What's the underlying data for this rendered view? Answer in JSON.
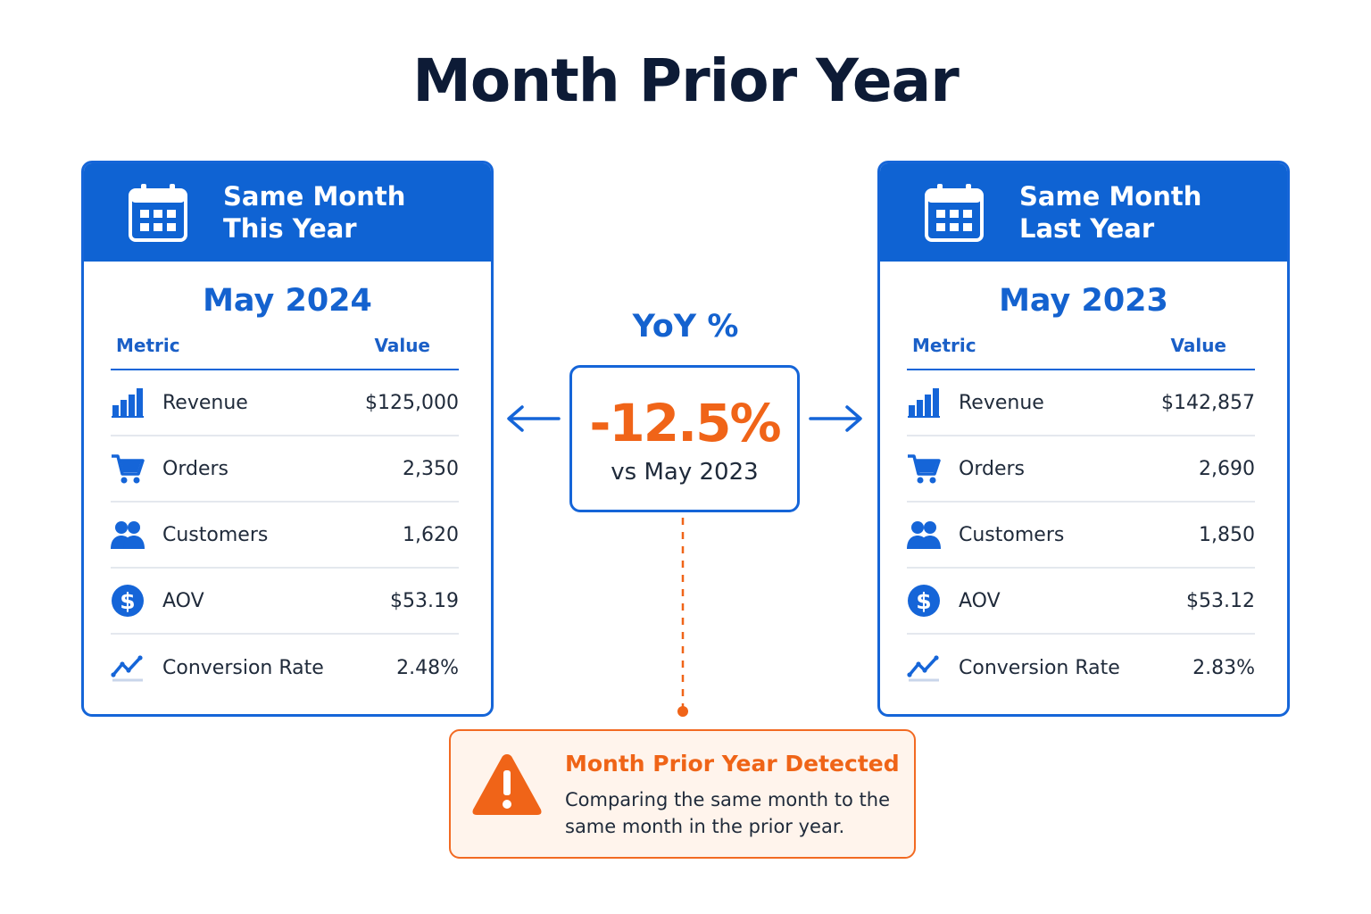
{
  "title": "Month Prior Year",
  "colors": {
    "primary_blue": "#0f63d3",
    "accent_orange": "#f06418",
    "alert_background": "#fff4ec"
  },
  "cards": [
    {
      "header_line1": "Same Month",
      "header_line2": "This Year",
      "header_icon": "calendar-icon",
      "month": "May 2024",
      "col_metric": "Metric",
      "col_value": "Value",
      "rows": [
        {
          "icon": "bar-chart-icon",
          "label": "Revenue",
          "value": "$125,000"
        },
        {
          "icon": "shopping-cart-icon",
          "label": "Orders",
          "value": "2,350"
        },
        {
          "icon": "users-icon",
          "label": "Customers",
          "value": "1,620"
        },
        {
          "icon": "dollar-icon",
          "label": "AOV",
          "value": "$53.19"
        },
        {
          "icon": "trend-line-icon",
          "label": "Conversion Rate",
          "value": "2.48%"
        }
      ]
    },
    {
      "header_line1": "Same Month",
      "header_line2": "Last Year",
      "header_icon": "calendar-icon",
      "month": "May 2023",
      "col_metric": "Metric",
      "col_value": "Value",
      "rows": [
        {
          "icon": "bar-chart-icon",
          "label": "Revenue",
          "value": "$142,857"
        },
        {
          "icon": "shopping-cart-icon",
          "label": "Orders",
          "value": "2,690"
        },
        {
          "icon": "users-icon",
          "label": "Customers",
          "value": "1,850"
        },
        {
          "icon": "dollar-icon",
          "label": "AOV",
          "value": "$53.12"
        },
        {
          "icon": "trend-line-icon",
          "label": "Conversion Rate",
          "value": "2.83%"
        }
      ]
    }
  ],
  "yoy": {
    "label": "YoY %",
    "value": "-12.5%",
    "comparison": "vs May 2023"
  },
  "alert": {
    "icon": "warning-icon",
    "title": "Month Prior Year Detected",
    "body": "Comparing the same month to the same month in the prior year."
  }
}
